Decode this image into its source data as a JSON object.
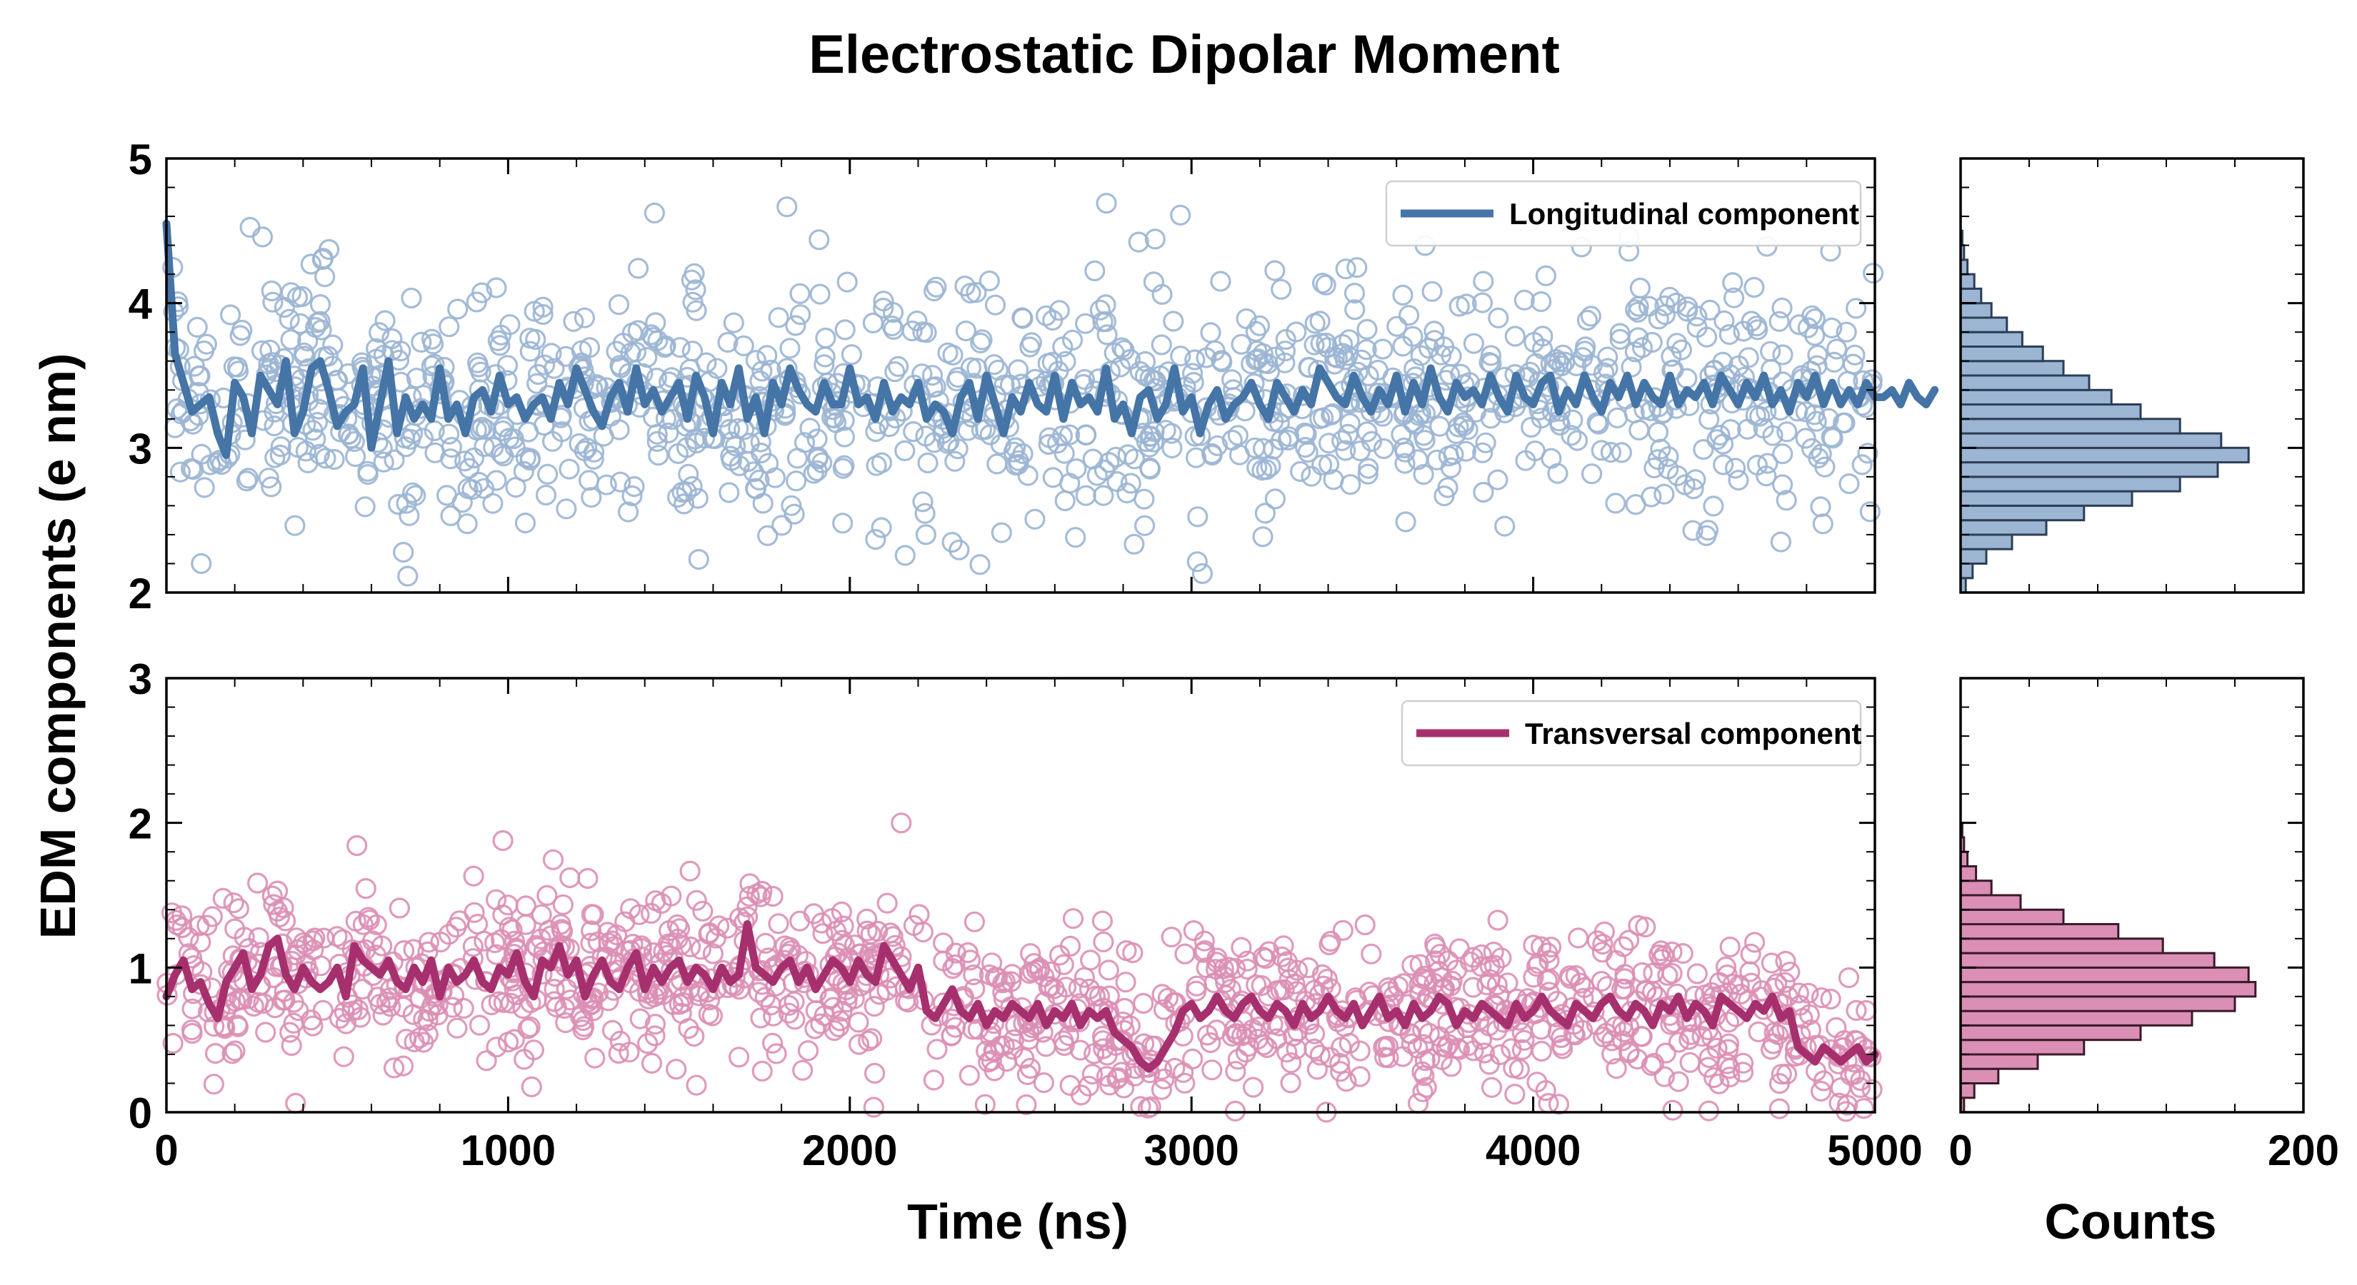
{
  "figure_title": "Electrostatic Dipolar Moment",
  "colors": {
    "longitudinal": "#4574a6",
    "longitudinal_fill": "#9bb5d3",
    "transversal": "#a6306e",
    "transversal_fill": "#db8fb5"
  },
  "chart_data": [
    {
      "type": "scatter",
      "panel": "top-left",
      "title": "",
      "xlabel": "",
      "ylabel": "EDM components (e nm)",
      "xlim": [
        0,
        5000
      ],
      "ylim": [
        2,
        5
      ],
      "xticks": [
        0,
        1000,
        2000,
        3000,
        4000,
        5000
      ],
      "yticks": [
        2,
        3,
        4,
        5
      ],
      "ytick_labels": [
        "2",
        "3",
        "4",
        "5"
      ],
      "legend": {
        "label": "Longitudinal component",
        "position": "top-right"
      },
      "series": [
        {
          "name": "Longitudinal component (running average)",
          "kind": "line",
          "x_step": 25,
          "x_start": 0,
          "y": [
            4.55,
            3.65,
            3.45,
            3.25,
            3.3,
            3.35,
            3.1,
            2.95,
            3.45,
            3.35,
            3.1,
            3.5,
            3.4,
            3.3,
            3.6,
            3.1,
            3.25,
            3.55,
            3.6,
            3.4,
            3.15,
            3.25,
            3.3,
            3.55,
            3.0,
            3.3,
            3.6,
            3.1,
            3.35,
            3.2,
            3.3,
            3.2,
            3.55,
            3.2,
            3.3,
            3.1,
            3.35,
            3.4,
            3.25,
            3.5,
            3.3,
            3.35,
            3.2,
            3.3,
            3.35,
            3.2,
            3.45,
            3.3,
            3.55,
            3.4,
            3.25,
            3.15,
            3.35,
            3.45,
            3.25,
            3.55,
            3.3,
            3.4,
            3.25,
            3.35,
            3.45,
            3.2,
            3.5,
            3.35,
            3.1,
            3.45,
            3.3,
            3.55,
            3.2,
            3.35,
            3.1,
            3.45,
            3.3,
            3.55,
            3.4,
            3.3,
            3.25,
            3.45,
            3.3,
            3.3,
            3.55,
            3.3,
            3.35,
            3.2,
            3.45,
            3.25,
            3.35,
            3.3,
            3.45,
            3.2,
            3.3,
            3.25,
            3.1,
            3.35,
            3.45,
            3.2,
            3.5,
            3.3,
            3.1,
            3.35,
            3.25,
            3.45,
            3.3,
            3.25,
            3.5,
            3.2,
            3.45,
            3.3,
            3.35,
            3.25,
            3.55,
            3.2,
            3.3,
            3.1,
            3.35,
            3.4,
            3.2,
            3.3,
            3.55,
            3.25,
            3.35,
            3.1,
            3.3,
            3.4,
            3.2,
            3.3,
            3.35,
            3.45,
            3.3,
            3.2,
            3.45,
            3.35,
            3.25,
            3.4,
            3.3,
            3.55,
            3.45,
            3.35,
            3.3,
            3.5,
            3.35,
            3.25,
            3.4,
            3.3,
            3.5,
            3.25,
            3.45,
            3.3,
            3.55,
            3.35,
            3.25,
            3.45,
            3.35,
            3.4,
            3.3,
            3.5,
            3.35,
            3.25,
            3.5,
            3.35,
            3.3,
            3.45,
            3.5,
            3.25,
            3.4,
            3.3,
            3.5,
            3.35,
            3.25,
            3.45,
            3.35,
            3.5,
            3.3,
            3.45,
            3.35,
            3.3,
            3.5,
            3.3,
            3.4,
            3.35,
            3.45,
            3.3,
            3.5,
            3.4,
            3.3,
            3.45,
            3.35,
            3.5,
            3.3,
            3.4,
            3.25,
            3.45,
            3.35,
            3.5,
            3.3,
            3.45,
            3.3,
            3.4,
            3.3,
            3.45,
            3.35,
            3.35,
            3.4,
            3.3,
            3.45,
            3.35,
            3.3,
            3.4
          ]
        },
        {
          "name": "Longitudinal component (samples)",
          "kind": "scatter",
          "marker": "open-circle",
          "count": 1200
        }
      ]
    },
    {
      "type": "bar",
      "orientation": "horizontal",
      "panel": "top-right",
      "title": "",
      "xlabel": "",
      "xlim": [
        0,
        200
      ],
      "xticks": [
        0,
        200
      ],
      "ylim": [
        2,
        5
      ],
      "bin_width": 0.1,
      "bin_edges_start": 2.0,
      "counts": [
        3,
        7,
        15,
        30,
        50,
        72,
        100,
        128,
        150,
        168,
        152,
        128,
        105,
        88,
        75,
        60,
        48,
        36,
        27,
        18,
        12,
        8,
        4,
        2,
        1,
        0,
        0,
        0,
        0,
        0
      ]
    },
    {
      "type": "scatter",
      "panel": "bottom-left",
      "title": "",
      "xlabel": "Time (ns)",
      "ylabel": "EDM components (e nm)",
      "xlim": [
        0,
        5000
      ],
      "ylim": [
        0,
        3
      ],
      "xticks": [
        0,
        1000,
        2000,
        3000,
        4000,
        5000
      ],
      "xtick_labels": [
        "0",
        "1000",
        "2000",
        "3000",
        "4000",
        "5000"
      ],
      "yticks": [
        0,
        1,
        2,
        3
      ],
      "ytick_labels": [
        "0",
        "1",
        "2",
        "3"
      ],
      "legend": {
        "label": "Transversal component",
        "position": "top-right"
      },
      "series": [
        {
          "name": "Transversal component (running average)",
          "kind": "line",
          "x_step": 25,
          "x_start": 0,
          "y": [
            0.8,
            0.95,
            1.05,
            0.85,
            0.9,
            0.75,
            0.65,
            0.9,
            1.0,
            1.1,
            0.85,
            0.95,
            1.15,
            1.2,
            0.95,
            0.85,
            1.0,
            0.9,
            0.85,
            0.9,
            1.0,
            0.8,
            1.15,
            1.05,
            1.0,
            0.95,
            1.05,
            0.9,
            0.85,
            1.0,
            0.9,
            1.05,
            0.8,
            1.0,
            0.9,
            0.95,
            1.05,
            0.9,
            0.85,
            1.0,
            0.95,
            1.1,
            0.9,
            0.8,
            1.05,
            1.0,
            1.15,
            0.95,
            1.05,
            0.8,
            0.95,
            1.05,
            0.9,
            0.85,
            1.0,
            1.1,
            0.85,
            1.0,
            0.9,
            1.0,
            1.05,
            0.9,
            1.0,
            0.95,
            0.85,
            1.0,
            0.9,
            0.95,
            1.3,
            1.0,
            0.95,
            0.9,
            1.0,
            1.05,
            0.9,
            1.0,
            0.85,
            0.95,
            1.05,
            1.0,
            0.9,
            1.05,
            0.95,
            0.9,
            1.15,
            1.05,
            0.95,
            0.85,
            1.0,
            0.7,
            0.65,
            0.75,
            0.85,
            0.7,
            0.65,
            0.75,
            0.6,
            0.7,
            0.65,
            0.75,
            0.7,
            0.65,
            0.75,
            0.6,
            0.7,
            0.65,
            0.75,
            0.6,
            0.7,
            0.65,
            0.7,
            0.55,
            0.5,
            0.45,
            0.35,
            0.3,
            0.35,
            0.45,
            0.55,
            0.7,
            0.75,
            0.65,
            0.7,
            0.8,
            0.7,
            0.65,
            0.75,
            0.8,
            0.7,
            0.65,
            0.75,
            0.7,
            0.6,
            0.75,
            0.65,
            0.7,
            0.8,
            0.7,
            0.65,
            0.75,
            0.6,
            0.7,
            0.8,
            0.65,
            0.7,
            0.6,
            0.75,
            0.65,
            0.7,
            0.8,
            0.75,
            0.6,
            0.7,
            0.65,
            0.75,
            0.7,
            0.65,
            0.6,
            0.75,
            0.65,
            0.7,
            0.8,
            0.7,
            0.65,
            0.6,
            0.75,
            0.7,
            0.65,
            0.75,
            0.8,
            0.7,
            0.65,
            0.75,
            0.7,
            0.6,
            0.75,
            0.7,
            0.8,
            0.65,
            0.75,
            0.7,
            0.6,
            0.8,
            0.75,
            0.7,
            0.65,
            0.75,
            0.7,
            0.8,
            0.65,
            0.7,
            0.45,
            0.4,
            0.35,
            0.45,
            0.4,
            0.35,
            0.4,
            0.45,
            0.35,
            0.4
          ]
        },
        {
          "name": "Transversal component (samples)",
          "kind": "scatter",
          "marker": "open-circle",
          "count": 1200
        }
      ]
    },
    {
      "type": "bar",
      "orientation": "horizontal",
      "panel": "bottom-right",
      "title": "",
      "xlabel": "Counts",
      "xlim": [
        0,
        200
      ],
      "xticks": [
        0,
        200
      ],
      "xtick_labels": [
        "0",
        "200"
      ],
      "ylim": [
        0,
        3
      ],
      "bin_width": 0.1,
      "bin_edges_start": 0.0,
      "counts": [
        2,
        8,
        22,
        45,
        72,
        105,
        135,
        160,
        172,
        168,
        148,
        118,
        92,
        60,
        35,
        18,
        9,
        4,
        2,
        1,
        0,
        0,
        0,
        0,
        0,
        0,
        0,
        0,
        0,
        0
      ]
    }
  ]
}
